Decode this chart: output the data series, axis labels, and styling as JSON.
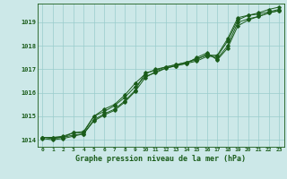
{
  "title": "Graphe pression niveau de la mer (hPa)",
  "bg_color": "#cce8e8",
  "plot_bg_color": "#cce8e8",
  "grid_color": "#99cccc",
  "line_color": "#1a5c1a",
  "marker_color": "#1a5c1a",
  "xlim": [
    -0.5,
    23.5
  ],
  "ylim": [
    1013.7,
    1019.8
  ],
  "yticks": [
    1014,
    1015,
    1016,
    1017,
    1018,
    1019
  ],
  "xticks": [
    0,
    1,
    2,
    3,
    4,
    5,
    6,
    7,
    8,
    9,
    10,
    11,
    12,
    13,
    14,
    15,
    16,
    17,
    18,
    19,
    20,
    21,
    22,
    23
  ],
  "series1_x": [
    0,
    1,
    2,
    3,
    4,
    5,
    6,
    7,
    8,
    9,
    10,
    11,
    12,
    13,
    14,
    15,
    16,
    17,
    18,
    19,
    20,
    21,
    22,
    23
  ],
  "series1_y": [
    1014.1,
    1014.1,
    1014.1,
    1014.3,
    1014.35,
    1015.0,
    1015.3,
    1015.5,
    1015.9,
    1016.4,
    1016.8,
    1017.0,
    1017.1,
    1017.2,
    1017.3,
    1017.45,
    1017.6,
    1017.6,
    1018.3,
    1019.2,
    1019.3,
    1019.4,
    1019.55,
    1019.65
  ],
  "series2_x": [
    0,
    1,
    2,
    3,
    4,
    5,
    6,
    7,
    8,
    9,
    10,
    11,
    12,
    13,
    14,
    15,
    16,
    17,
    18,
    19,
    20,
    21,
    22,
    23
  ],
  "series2_y": [
    1014.1,
    1014.05,
    1014.1,
    1014.2,
    1014.25,
    1014.8,
    1015.05,
    1015.25,
    1015.6,
    1016.05,
    1016.65,
    1016.9,
    1017.05,
    1017.15,
    1017.25,
    1017.35,
    1017.55,
    1017.55,
    1018.2,
    1019.1,
    1019.3,
    1019.35,
    1019.45,
    1019.55
  ],
  "series3_x": [
    0,
    1,
    2,
    3,
    4,
    5,
    6,
    7,
    8,
    9,
    10,
    11,
    12,
    13,
    14,
    15,
    16,
    17,
    18,
    19,
    20,
    21,
    22,
    23
  ],
  "series3_y": [
    1014.05,
    1014.0,
    1014.05,
    1014.15,
    1014.25,
    1014.85,
    1015.1,
    1015.3,
    1015.65,
    1016.1,
    1016.85,
    1016.95,
    1017.1,
    1017.2,
    1017.3,
    1017.4,
    1017.65,
    1017.45,
    1018.0,
    1019.0,
    1019.15,
    1019.25,
    1019.4,
    1019.5
  ],
  "series4_x": [
    0,
    1,
    2,
    3,
    4,
    5,
    6,
    7,
    8,
    9,
    10,
    11,
    12,
    13,
    14,
    15,
    16,
    17,
    18,
    19,
    20,
    21,
    22,
    23
  ],
  "series4_y": [
    1014.1,
    1014.1,
    1014.15,
    1014.3,
    1014.3,
    1015.0,
    1015.2,
    1015.45,
    1015.8,
    1016.25,
    1016.7,
    1016.85,
    1017.05,
    1017.15,
    1017.25,
    1017.5,
    1017.7,
    1017.4,
    1017.9,
    1018.85,
    1019.1,
    1019.25,
    1019.4,
    1019.5
  ]
}
